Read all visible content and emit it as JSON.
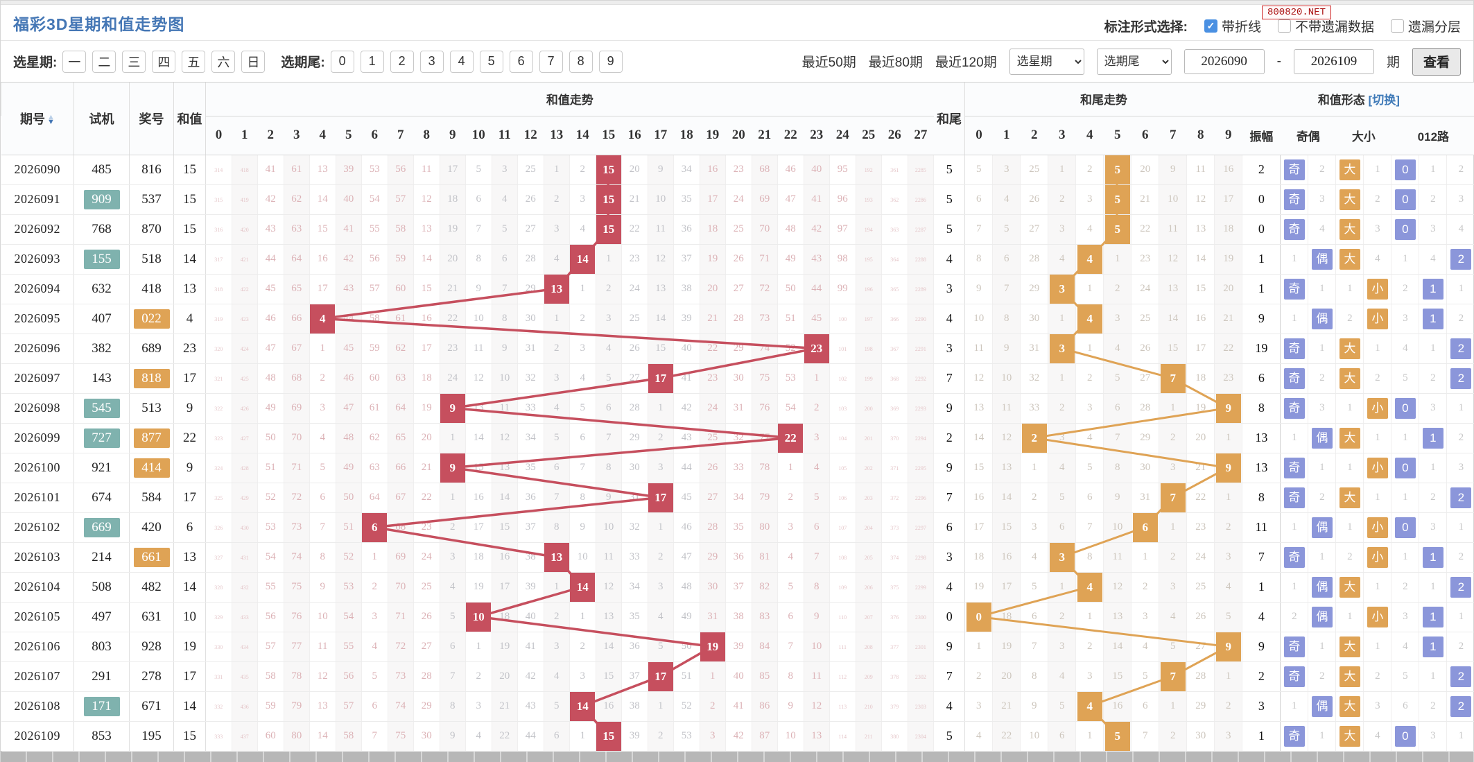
{
  "page": {
    "title": "福彩3D星期和值走势图",
    "watermark": "800820.NET"
  },
  "annotation": {
    "label": "标注形式选择:",
    "options": [
      {
        "label": "带折线",
        "checked": true
      },
      {
        "label": "不带遗漏数据",
        "checked": false
      },
      {
        "label": "遗漏分层",
        "checked": false
      }
    ]
  },
  "filters": {
    "week_label": "选星期:",
    "week_options": [
      "一",
      "二",
      "三",
      "四",
      "五",
      "六",
      "日"
    ],
    "tail_label": "选期尾:",
    "tail_options": [
      "0",
      "1",
      "2",
      "3",
      "4",
      "5",
      "6",
      "7",
      "8",
      "9"
    ],
    "quick_ranges": [
      "最近50期",
      "最近80期",
      "最近120期"
    ],
    "week_select": "选星期",
    "tail_select": "选期尾",
    "range_from": "2026090",
    "range_dash": "-",
    "range_to": "2026109",
    "range_suffix": "期",
    "view_button": "查看"
  },
  "table": {
    "col_qihao": "期号",
    "col_shiji": "试机",
    "col_jianghao": "奖号",
    "col_hezhi": "和值",
    "group_sum": "和值走势",
    "col_hewei": "和尾",
    "group_tail": "和尾走势",
    "group_pattern": "和值形态",
    "switch_link": "[切换]",
    "col_zhenfu": "振幅",
    "col_jiou": "奇偶",
    "col_daxiao": "大小",
    "col_lu": "012路",
    "sum_cols": [
      0,
      1,
      2,
      3,
      4,
      5,
      6,
      7,
      8,
      9,
      10,
      11,
      12,
      13,
      14,
      15,
      16,
      17,
      18,
      19,
      20,
      21,
      22,
      23,
      24,
      25,
      26,
      27
    ],
    "tail_cols": [
      0,
      1,
      2,
      3,
      4,
      5,
      6,
      7,
      8,
      9
    ],
    "odd_char": "奇",
    "even_char": "偶",
    "big_char": "大",
    "small_char": "小"
  },
  "colors": {
    "sum_marker": "#c64f5e",
    "tail_marker": "#dfa355",
    "badge_blue": "#8b96da",
    "badge_orange": "#dfa355",
    "shiji_teal": "#7fb2ae",
    "jiang_gold": "#dfa355"
  },
  "rows": [
    {
      "qi": "2026090",
      "shiji": "485",
      "shiji_hl": false,
      "jiang": "816",
      "jiang_hl": false,
      "hezhi": 15,
      "sum": [
        314,
        418,
        41,
        61,
        13,
        39,
        53,
        56,
        11,
        17,
        5,
        3,
        25,
        1,
        2,
        15,
        20,
        9,
        34,
        16,
        23,
        68,
        46,
        40,
        95,
        192,
        361,
        2285
      ],
      "hewei": 5,
      "tail": [
        5,
        3,
        25,
        1,
        2,
        5,
        20,
        9,
        11,
        16
      ],
      "zhenfu": 2,
      "jiou": [
        -1,
        2
      ],
      "daxiao": [
        -1,
        1
      ],
      "lu": [
        -1,
        1,
        2
      ]
    },
    {
      "qi": "2026091",
      "shiji": "909",
      "shiji_hl": true,
      "jiang": "537",
      "jiang_hl": false,
      "hezhi": 15,
      "sum": [
        315,
        419,
        42,
        62,
        14,
        40,
        54,
        57,
        12,
        18,
        6,
        4,
        26,
        2,
        3,
        15,
        21,
        10,
        35,
        17,
        24,
        69,
        47,
        41,
        96,
        193,
        362,
        2286
      ],
      "hewei": 5,
      "tail": [
        6,
        4,
        26,
        2,
        3,
        5,
        21,
        10,
        12,
        17
      ],
      "zhenfu": 0,
      "jiou": [
        -1,
        3
      ],
      "daxiao": [
        -1,
        2
      ],
      "lu": [
        -1,
        2,
        3
      ]
    },
    {
      "qi": "2026092",
      "shiji": "768",
      "shiji_hl": false,
      "jiang": "870",
      "jiang_hl": false,
      "hezhi": 15,
      "sum": [
        316,
        420,
        43,
        63,
        15,
        41,
        55,
        58,
        13,
        19,
        7,
        5,
        27,
        3,
        4,
        15,
        22,
        11,
        36,
        18,
        25,
        70,
        48,
        42,
        97,
        194,
        363,
        2287
      ],
      "hewei": 5,
      "tail": [
        7,
        5,
        27,
        3,
        4,
        5,
        22,
        11,
        13,
        18
      ],
      "zhenfu": 0,
      "jiou": [
        -1,
        4
      ],
      "daxiao": [
        -1,
        3
      ],
      "lu": [
        -1,
        3,
        4
      ]
    },
    {
      "qi": "2026093",
      "shiji": "155",
      "shiji_hl": true,
      "jiang": "518",
      "jiang_hl": false,
      "hezhi": 14,
      "sum": [
        317,
        421,
        44,
        64,
        16,
        42,
        56,
        59,
        14,
        20,
        8,
        6,
        28,
        4,
        14,
        1,
        23,
        12,
        37,
        19,
        26,
        71,
        49,
        43,
        98,
        195,
        364,
        2288
      ],
      "hewei": 4,
      "tail": [
        8,
        6,
        28,
        4,
        4,
        1,
        23,
        12,
        14,
        19
      ],
      "zhenfu": 1,
      "jiou": [
        1,
        -1
      ],
      "daxiao": [
        -1,
        4
      ],
      "lu": [
        1,
        4,
        -1
      ]
    },
    {
      "qi": "2026094",
      "shiji": "632",
      "shiji_hl": false,
      "jiang": "418",
      "jiang_hl": false,
      "hezhi": 13,
      "sum": [
        318,
        422,
        45,
        65,
        17,
        43,
        57,
        60,
        15,
        21,
        9,
        7,
        29,
        13,
        1,
        2,
        24,
        13,
        38,
        20,
        27,
        72,
        50,
        44,
        99,
        196,
        365,
        2289
      ],
      "hewei": 3,
      "tail": [
        9,
        7,
        29,
        3,
        1,
        2,
        24,
        13,
        15,
        20
      ],
      "zhenfu": 1,
      "jiou": [
        -1,
        1
      ],
      "daxiao": [
        1,
        -1
      ],
      "lu": [
        2,
        -1,
        1
      ]
    },
    {
      "qi": "2026095",
      "shiji": "407",
      "shiji_hl": false,
      "jiang": "022",
      "jiang_hl": true,
      "hezhi": 4,
      "sum": [
        319,
        423,
        46,
        66,
        4,
        44,
        58,
        61,
        16,
        22,
        10,
        8,
        30,
        1,
        2,
        3,
        25,
        14,
        39,
        21,
        28,
        73,
        51,
        45,
        100,
        197,
        366,
        2290
      ],
      "hewei": 4,
      "tail": [
        10,
        8,
        30,
        1,
        4,
        3,
        25,
        14,
        16,
        21
      ],
      "zhenfu": 9,
      "jiou": [
        1,
        -1
      ],
      "daxiao": [
        2,
        -1
      ],
      "lu": [
        3,
        -1,
        2
      ]
    },
    {
      "qi": "2026096",
      "shiji": "382",
      "shiji_hl": false,
      "jiang": "689",
      "jiang_hl": false,
      "hezhi": 23,
      "sum": [
        320,
        424,
        47,
        67,
        1,
        45,
        59,
        62,
        17,
        23,
        11,
        9,
        31,
        2,
        3,
        4,
        26,
        15,
        40,
        22,
        29,
        74,
        52,
        23,
        101,
        198,
        367,
        2291
      ],
      "hewei": 3,
      "tail": [
        11,
        9,
        31,
        3,
        1,
        4,
        26,
        15,
        17,
        22
      ],
      "zhenfu": 19,
      "jiou": [
        -1,
        1
      ],
      "daxiao": [
        -1,
        1
      ],
      "lu": [
        4,
        1,
        -1
      ]
    },
    {
      "qi": "2026097",
      "shiji": "143",
      "shiji_hl": false,
      "jiang": "818",
      "jiang_hl": true,
      "hezhi": 17,
      "sum": [
        321,
        425,
        48,
        68,
        2,
        46,
        60,
        63,
        18,
        24,
        12,
        10,
        32,
        3,
        4,
        5,
        27,
        17,
        41,
        23,
        30,
        75,
        53,
        1,
        102,
        199,
        368,
        2292
      ],
      "hewei": 7,
      "tail": [
        12,
        10,
        32,
        1,
        2,
        5,
        27,
        7,
        18,
        23
      ],
      "zhenfu": 6,
      "jiou": [
        -1,
        2
      ],
      "daxiao": [
        -1,
        2
      ],
      "lu": [
        5,
        2,
        -1
      ]
    },
    {
      "qi": "2026098",
      "shiji": "545",
      "shiji_hl": true,
      "jiang": "513",
      "jiang_hl": false,
      "hezhi": 9,
      "sum": [
        322,
        426,
        49,
        69,
        3,
        47,
        61,
        64,
        19,
        9,
        13,
        11,
        33,
        4,
        5,
        6,
        28,
        1,
        42,
        24,
        31,
        76,
        54,
        2,
        103,
        200,
        369,
        2293
      ],
      "hewei": 9,
      "tail": [
        13,
        11,
        33,
        2,
        3,
        6,
        28,
        1,
        19,
        9
      ],
      "zhenfu": 8,
      "jiou": [
        -1,
        3
      ],
      "daxiao": [
        1,
        -1
      ],
      "lu": [
        -1,
        3,
        1
      ]
    },
    {
      "qi": "2026099",
      "shiji": "727",
      "shiji_hl": true,
      "jiang": "877",
      "jiang_hl": true,
      "hezhi": 22,
      "sum": [
        323,
        427,
        50,
        70,
        4,
        48,
        62,
        65,
        20,
        1,
        14,
        12,
        34,
        5,
        6,
        7,
        29,
        2,
        43,
        25,
        32,
        77,
        22,
        3,
        104,
        201,
        370,
        2294
      ],
      "hewei": 2,
      "tail": [
        14,
        12,
        2,
        3,
        4,
        7,
        29,
        2,
        20,
        1
      ],
      "zhenfu": 13,
      "jiou": [
        1,
        -1
      ],
      "daxiao": [
        -1,
        1
      ],
      "lu": [
        1,
        -1,
        2
      ]
    },
    {
      "qi": "2026100",
      "shiji": "921",
      "shiji_hl": false,
      "jiang": "414",
      "jiang_hl": true,
      "hezhi": 9,
      "sum": [
        324,
        428,
        51,
        71,
        5,
        49,
        63,
        66,
        21,
        9,
        15,
        13,
        35,
        6,
        7,
        8,
        30,
        3,
        44,
        26,
        33,
        78,
        1,
        4,
        105,
        202,
        371,
        2295
      ],
      "hewei": 9,
      "tail": [
        15,
        13,
        1,
        4,
        5,
        8,
        30,
        3,
        21,
        9
      ],
      "zhenfu": 13,
      "jiou": [
        -1,
        1
      ],
      "daxiao": [
        1,
        -1
      ],
      "lu": [
        -1,
        1,
        3
      ]
    },
    {
      "qi": "2026101",
      "shiji": "674",
      "shiji_hl": false,
      "jiang": "584",
      "jiang_hl": false,
      "hezhi": 17,
      "sum": [
        325,
        429,
        52,
        72,
        6,
        50,
        64,
        67,
        22,
        1,
        16,
        14,
        36,
        7,
        8,
        9,
        31,
        17,
        45,
        27,
        34,
        79,
        2,
        5,
        106,
        203,
        372,
        2296
      ],
      "hewei": 7,
      "tail": [
        16,
        14,
        2,
        5,
        6,
        9,
        31,
        7,
        22,
        1
      ],
      "zhenfu": 8,
      "jiou": [
        -1,
        2
      ],
      "daxiao": [
        -1,
        1
      ],
      "lu": [
        1,
        2,
        -1
      ]
    },
    {
      "qi": "2026102",
      "shiji": "669",
      "shiji_hl": true,
      "jiang": "420",
      "jiang_hl": false,
      "hezhi": 6,
      "sum": [
        326,
        430,
        53,
        73,
        7,
        51,
        6,
        68,
        23,
        2,
        17,
        15,
        37,
        8,
        9,
        10,
        32,
        1,
        46,
        28,
        35,
        80,
        3,
        6,
        107,
        204,
        373,
        2297
      ],
      "hewei": 6,
      "tail": [
        17,
        15,
        3,
        6,
        7,
        10,
        6,
        1,
        23,
        2
      ],
      "zhenfu": 11,
      "jiou": [
        1,
        -1
      ],
      "daxiao": [
        1,
        -1
      ],
      "lu": [
        -1,
        3,
        1
      ]
    },
    {
      "qi": "2026103",
      "shiji": "214",
      "shiji_hl": false,
      "jiang": "661",
      "jiang_hl": true,
      "hezhi": 13,
      "sum": [
        327,
        431,
        54,
        74,
        8,
        52,
        1,
        69,
        24,
        3,
        18,
        16,
        38,
        13,
        10,
        11,
        33,
        2,
        47,
        29,
        36,
        81,
        4,
        7,
        108,
        205,
        374,
        2298
      ],
      "hewei": 3,
      "tail": [
        18,
        16,
        4,
        3,
        8,
        11,
        1,
        2,
        24,
        3
      ],
      "zhenfu": 7,
      "jiou": [
        -1,
        1
      ],
      "daxiao": [
        2,
        -1
      ],
      "lu": [
        1,
        -1,
        2
      ]
    },
    {
      "qi": "2026104",
      "shiji": "508",
      "shiji_hl": false,
      "jiang": "482",
      "jiang_hl": false,
      "hezhi": 14,
      "sum": [
        328,
        432,
        55,
        75,
        9,
        53,
        2,
        70,
        25,
        4,
        19,
        17,
        39,
        1,
        14,
        12,
        34,
        3,
        48,
        30,
        37,
        82,
        5,
        8,
        109,
        206,
        375,
        2299
      ],
      "hewei": 4,
      "tail": [
        19,
        17,
        5,
        1,
        4,
        12,
        2,
        3,
        25,
        4
      ],
      "zhenfu": 1,
      "jiou": [
        1,
        -1
      ],
      "daxiao": [
        -1,
        1
      ],
      "lu": [
        2,
        1,
        -1
      ]
    },
    {
      "qi": "2026105",
      "shiji": "497",
      "shiji_hl": false,
      "jiang": "631",
      "jiang_hl": false,
      "hezhi": 10,
      "sum": [
        329,
        433,
        56,
        76,
        10,
        54,
        3,
        71,
        26,
        5,
        10,
        18,
        40,
        2,
        1,
        13,
        35,
        4,
        49,
        31,
        38,
        83,
        6,
        9,
        110,
        207,
        376,
        2300
      ],
      "hewei": 0,
      "tail": [
        0,
        18,
        6,
        2,
        1,
        13,
        3,
        4,
        26,
        5
      ],
      "zhenfu": 4,
      "jiou": [
        2,
        -1
      ],
      "daxiao": [
        1,
        -1
      ],
      "lu": [
        3,
        -1,
        1
      ]
    },
    {
      "qi": "2026106",
      "shiji": "803",
      "shiji_hl": false,
      "jiang": "928",
      "jiang_hl": false,
      "hezhi": 19,
      "sum": [
        330,
        434,
        57,
        77,
        11,
        55,
        4,
        72,
        27,
        6,
        1,
        19,
        41,
        3,
        2,
        14,
        36,
        5,
        50,
        19,
        39,
        84,
        7,
        10,
        111,
        208,
        377,
        2301
      ],
      "hewei": 9,
      "tail": [
        1,
        19,
        7,
        3,
        2,
        14,
        4,
        5,
        27,
        9
      ],
      "zhenfu": 9,
      "jiou": [
        -1,
        1
      ],
      "daxiao": [
        -1,
        1
      ],
      "lu": [
        4,
        -1,
        2
      ]
    },
    {
      "qi": "2026107",
      "shiji": "291",
      "shiji_hl": false,
      "jiang": "278",
      "jiang_hl": false,
      "hezhi": 17,
      "sum": [
        331,
        435,
        58,
        78,
        12,
        56,
        5,
        73,
        28,
        7,
        2,
        20,
        42,
        4,
        3,
        15,
        37,
        17,
        51,
        1,
        40,
        85,
        8,
        11,
        112,
        209,
        378,
        2302
      ],
      "hewei": 7,
      "tail": [
        2,
        20,
        8,
        4,
        3,
        15,
        5,
        7,
        28,
        1
      ],
      "zhenfu": 2,
      "jiou": [
        -1,
        2
      ],
      "daxiao": [
        -1,
        2
      ],
      "lu": [
        5,
        1,
        -1
      ]
    },
    {
      "qi": "2026108",
      "shiji": "171",
      "shiji_hl": true,
      "jiang": "671",
      "jiang_hl": false,
      "hezhi": 14,
      "sum": [
        332,
        436,
        59,
        79,
        13,
        57,
        6,
        74,
        29,
        8,
        3,
        21,
        43,
        5,
        14,
        16,
        38,
        1,
        52,
        2,
        41,
        86,
        9,
        12,
        113,
        210,
        379,
        2303
      ],
      "hewei": 4,
      "tail": [
        3,
        21,
        9,
        5,
        4,
        16,
        6,
        1,
        29,
        2
      ],
      "zhenfu": 3,
      "jiou": [
        1,
        -1
      ],
      "daxiao": [
        -1,
        3
      ],
      "lu": [
        6,
        2,
        -1
      ]
    },
    {
      "qi": "2026109",
      "shiji": "853",
      "shiji_hl": false,
      "jiang": "195",
      "jiang_hl": false,
      "hezhi": 15,
      "sum": [
        333,
        437,
        60,
        80,
        14,
        58,
        7,
        75,
        30,
        9,
        4,
        22,
        44,
        6,
        1,
        15,
        39,
        2,
        53,
        3,
        42,
        87,
        10,
        13,
        114,
        211,
        380,
        2304
      ],
      "hewei": 5,
      "tail": [
        4,
        22,
        10,
        6,
        1,
        5,
        7,
        2,
        30,
        3
      ],
      "zhenfu": 1,
      "jiou": [
        -1,
        1
      ],
      "daxiao": [
        -1,
        4
      ],
      "lu": [
        -1,
        3,
        1
      ]
    }
  ]
}
